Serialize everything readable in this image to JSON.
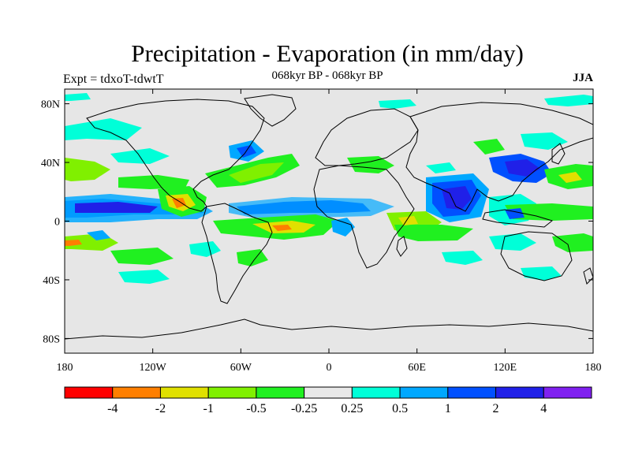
{
  "title": "Precipitation - Evaporation (in mm/day)",
  "subtitle": "068kyr BP - 068kyr BP",
  "experiment": "Expt = tdxoT-tdwtT",
  "season": "JJA",
  "axes": {
    "y_ticks": [
      {
        "lat": 80,
        "label": "80N"
      },
      {
        "lat": 40,
        "label": "40N"
      },
      {
        "lat": 0,
        "label": "0"
      },
      {
        "lat": -40,
        "label": "40S"
      },
      {
        "lat": -80,
        "label": "80S"
      }
    ],
    "x_ticks": [
      {
        "lon": -180,
        "label": "180"
      },
      {
        "lon": -120,
        "label": "120W"
      },
      {
        "lon": -60,
        "label": "60W"
      },
      {
        "lon": 0,
        "label": "0"
      },
      {
        "lon": 60,
        "label": "60E"
      },
      {
        "lon": 120,
        "label": "120E"
      },
      {
        "lon": 180,
        "label": "180"
      }
    ]
  },
  "colorbar": {
    "colors": [
      "#ff0000",
      "#ff7f00",
      "#e0e000",
      "#80f000",
      "#20f020",
      "#e8e8e8",
      "#00ffd8",
      "#00a8ff",
      "#0050ff",
      "#2020e8",
      "#8020f0"
    ],
    "labels": [
      "-4",
      "-2",
      "-1",
      "-0.5",
      "-0.25",
      "0.25",
      "0.5",
      "1",
      "2",
      "4"
    ]
  },
  "colors": {
    "background_field": "#e6e6e6",
    "coast": "#000000"
  }
}
